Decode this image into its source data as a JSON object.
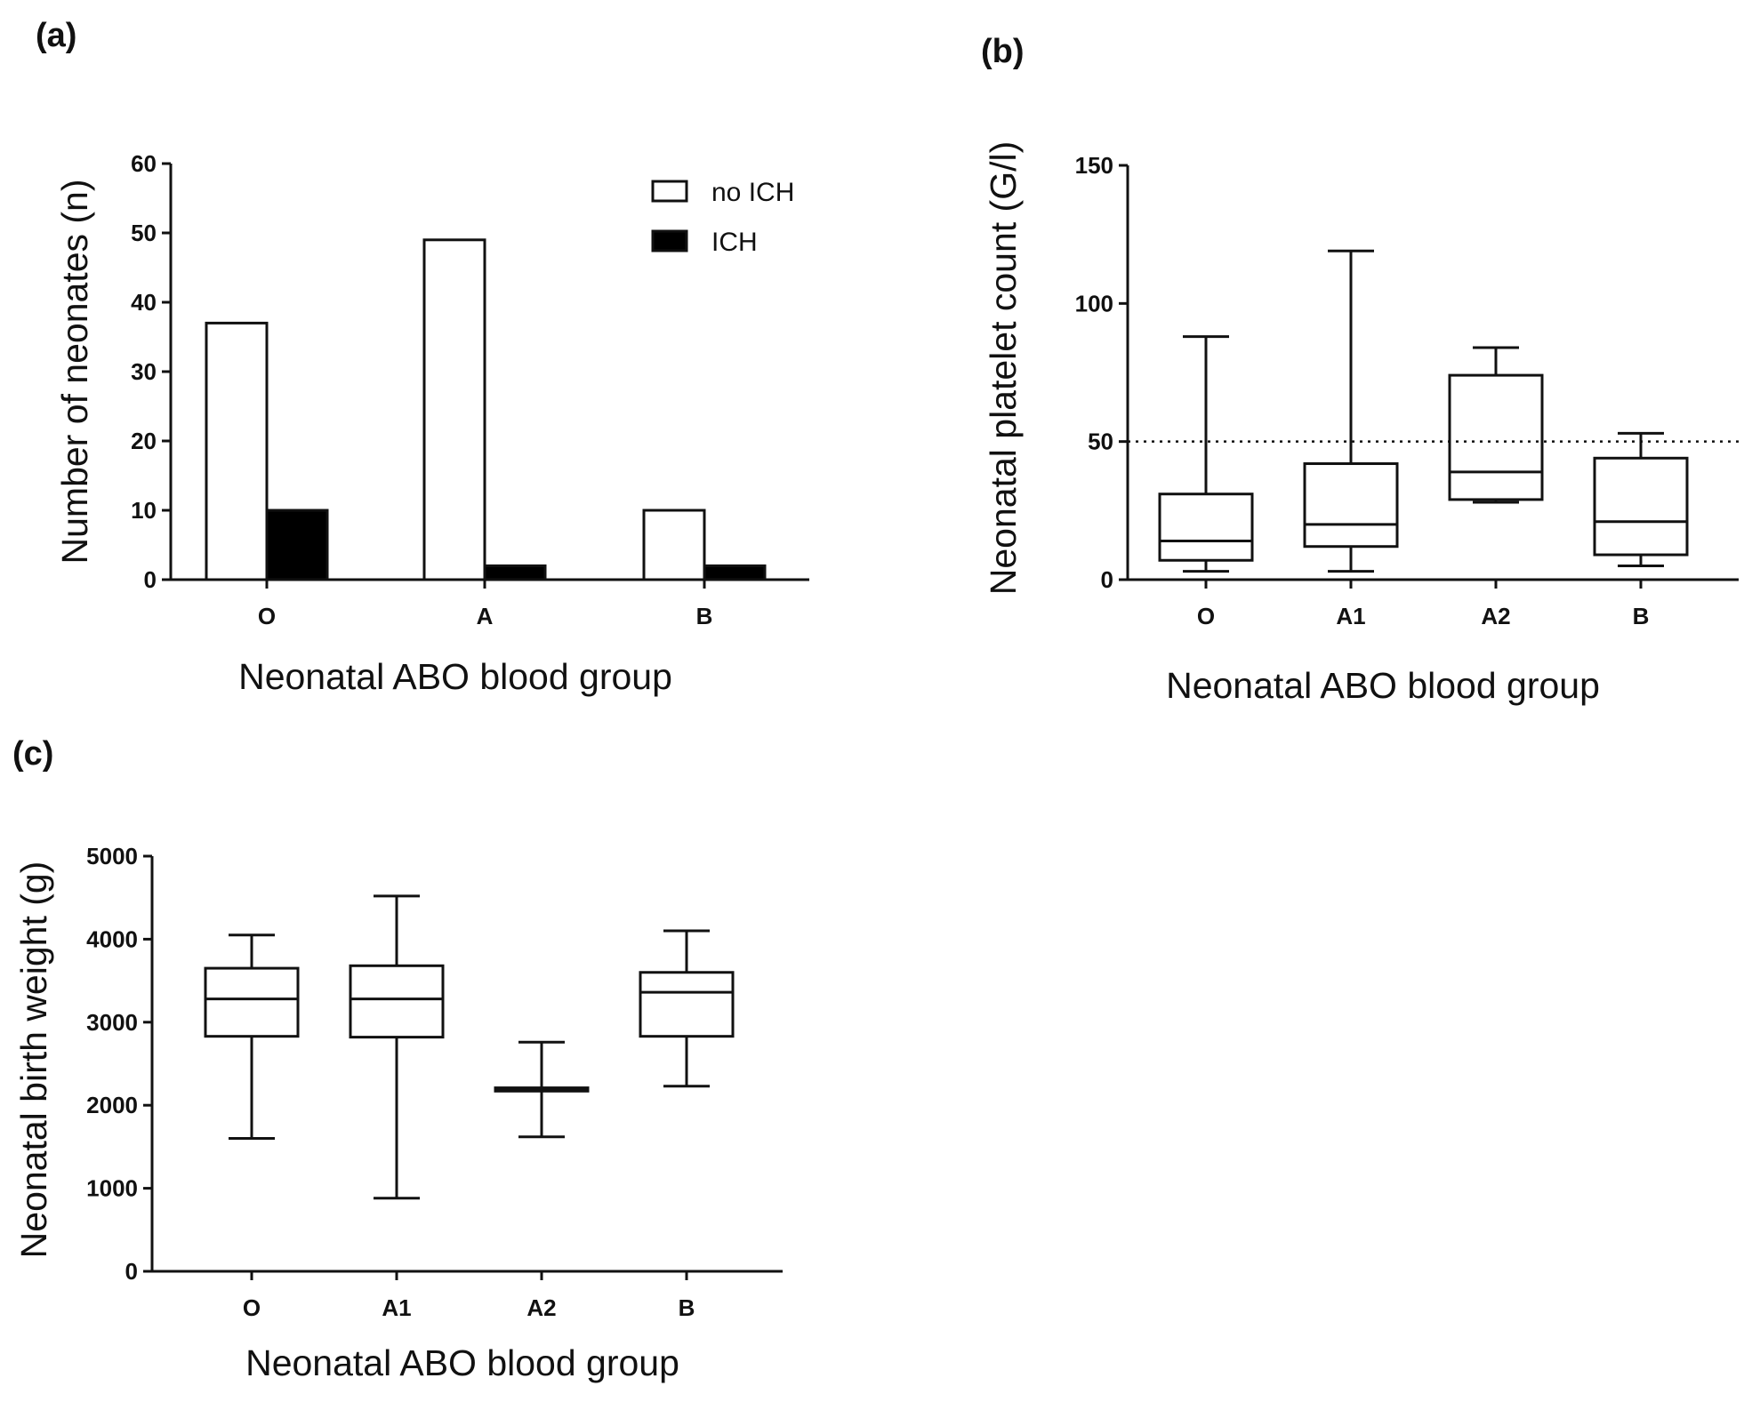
{
  "chart_data": [
    {
      "panel": "(a)",
      "type": "bar",
      "categories": [
        "O",
        "A",
        "B"
      ],
      "series": [
        {
          "name": "no ICH",
          "values": [
            37,
            49,
            10
          ],
          "color": "#ffffff"
        },
        {
          "name": "ICH",
          "values": [
            10,
            2,
            2
          ],
          "color": "#000000"
        }
      ],
      "xlabel": "Neonatal ABO blood group",
      "ylabel": "Number of neonates (n)",
      "ylim": [
        0,
        60
      ],
      "yticks": [
        "0",
        "10",
        "20",
        "30",
        "40",
        "50",
        "60"
      ],
      "legend": "top-right"
    },
    {
      "panel": "(b)",
      "type": "box",
      "categories": [
        "O",
        "A1",
        "A2",
        "B"
      ],
      "boxes": [
        {
          "min": 3,
          "q1": 7,
          "median": 14,
          "q3": 31,
          "max": 88
        },
        {
          "min": 3,
          "q1": 12,
          "median": 20,
          "q3": 42,
          "max": 119
        },
        {
          "min": 28,
          "q1": 29,
          "median": 39,
          "q3": 74,
          "max": 84
        },
        {
          "min": 5,
          "q1": 9,
          "median": 21,
          "q3": 44,
          "max": 53
        }
      ],
      "reference_line": 50,
      "xlabel": "Neonatal ABO blood group",
      "ylabel": "Neonatal platelet count (G/l)",
      "ylim": [
        0,
        150
      ],
      "yticks": [
        "0",
        "50",
        "100",
        "150"
      ]
    },
    {
      "panel": "(c)",
      "type": "box",
      "categories": [
        "O",
        "A1",
        "A2",
        "B"
      ],
      "boxes": [
        {
          "min": 1600,
          "q1": 2830,
          "median": 3280,
          "q3": 3650,
          "max": 4050
        },
        {
          "min": 880,
          "q1": 2820,
          "median": 3280,
          "q3": 3680,
          "max": 4520
        },
        {
          "min": 1620,
          "q1": 2170,
          "median": 2190,
          "q3": 2210,
          "max": 2760
        },
        {
          "min": 2230,
          "q1": 2830,
          "median": 3360,
          "q3": 3600,
          "max": 4100
        }
      ],
      "xlabel": "Neonatal ABO blood group",
      "ylabel": "Neonatal birth weight (g)",
      "ylim": [
        0,
        5000
      ],
      "yticks": [
        "0",
        "1000",
        "2000",
        "3000",
        "4000",
        "5000"
      ]
    }
  ]
}
